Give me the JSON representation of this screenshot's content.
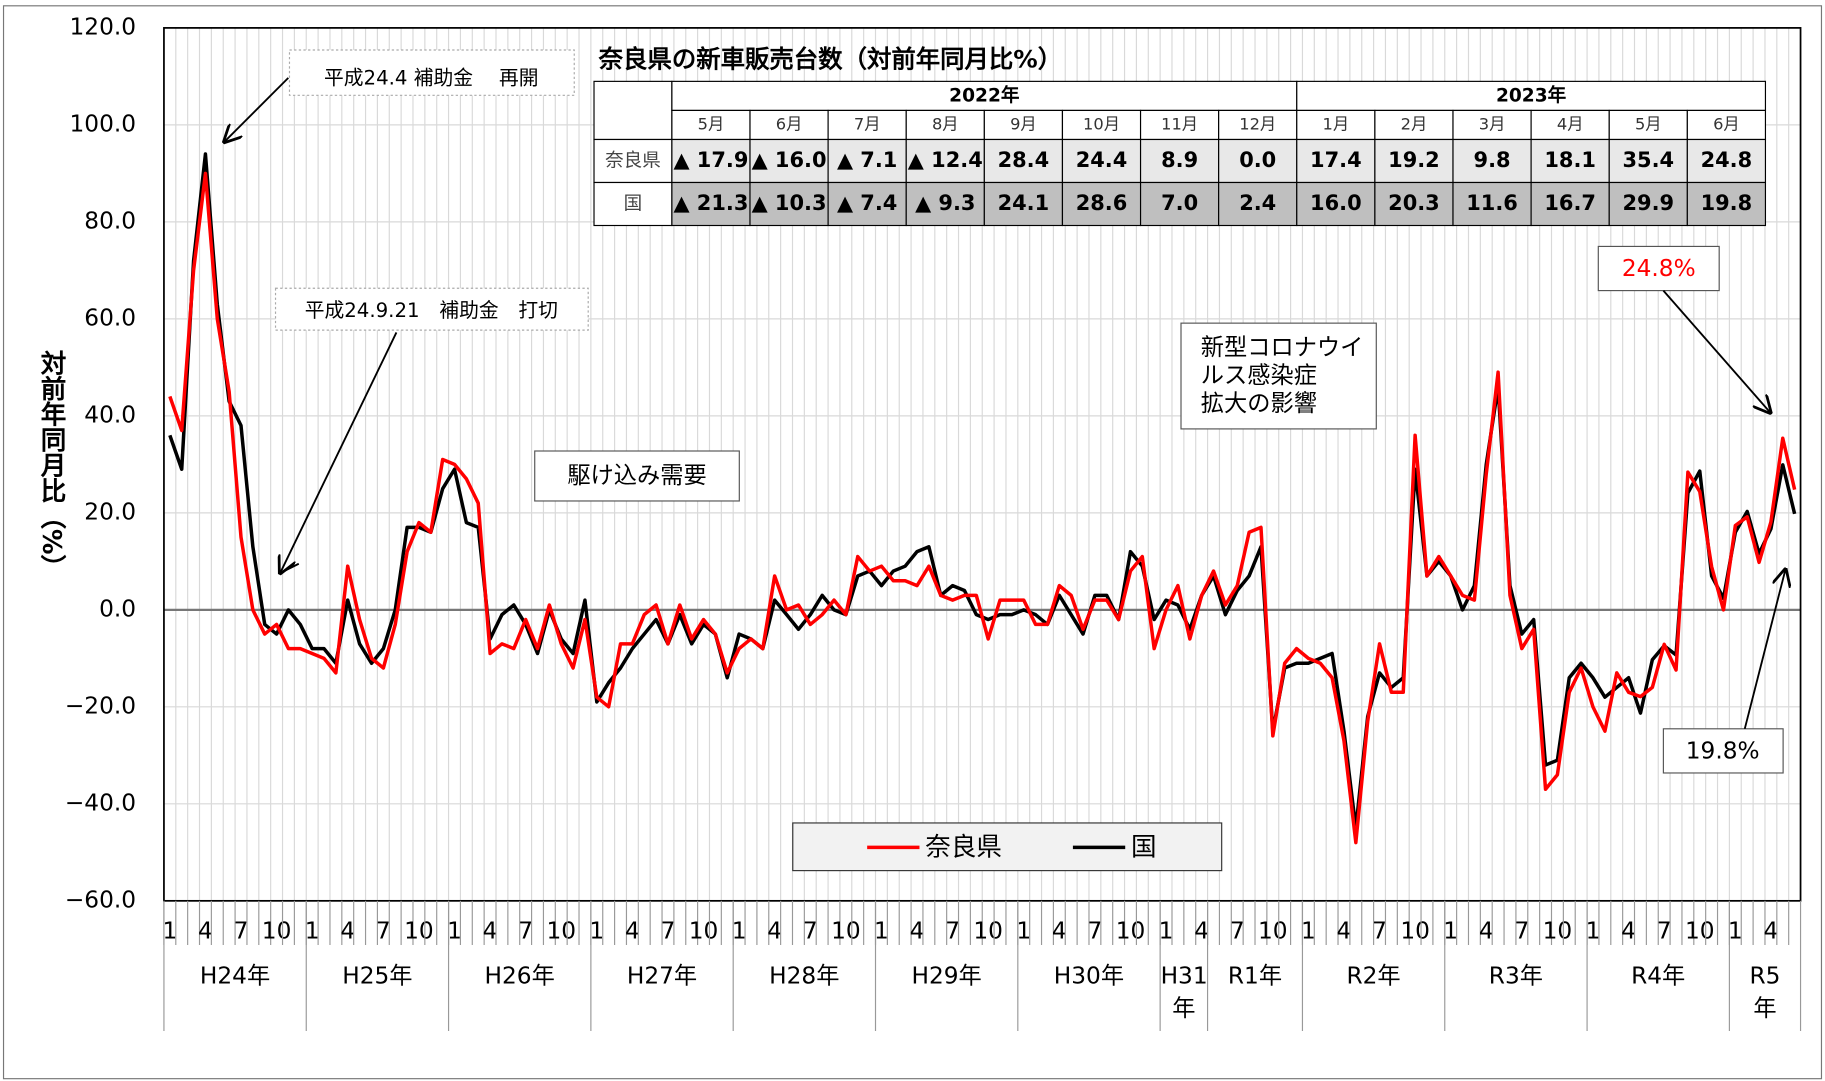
{
  "chart_data": {
    "type": "line",
    "ylabel": "対前年同月比（%）",
    "ylim": [
      -60,
      120
    ],
    "yticks": [
      {
        "value": -60,
        "label": "−60.0"
      },
      {
        "value": -40,
        "label": "−40.0"
      },
      {
        "value": -20,
        "label": "−20.0"
      },
      {
        "value": 0,
        "label": "0.0"
      },
      {
        "value": 20,
        "label": "20.0"
      },
      {
        "value": 40,
        "label": "40.0"
      },
      {
        "value": 60,
        "label": "60.0"
      },
      {
        "value": 80,
        "label": "80.0"
      },
      {
        "value": 100,
        "label": "100.0"
      },
      {
        "value": 120,
        "label": "120.0"
      }
    ],
    "grid": true,
    "legend": "bottom",
    "categories": [
      "1",
      null,
      null,
      "4",
      null,
      null,
      "7",
      null,
      null,
      "10",
      null,
      null,
      "1",
      null,
      null,
      "4",
      null,
      null,
      "7",
      null,
      null,
      "10",
      null,
      null,
      "1",
      null,
      null,
      "4",
      null,
      null,
      "7",
      null,
      null,
      "10",
      null,
      null,
      "1",
      null,
      null,
      "4",
      null,
      null,
      "7",
      null,
      null,
      "10",
      null,
      null,
      "1",
      null,
      null,
      "4",
      null,
      null,
      "7",
      null,
      null,
      "10",
      null,
      null,
      "1",
      null,
      null,
      "4",
      null,
      null,
      "7",
      null,
      null,
      "10",
      null,
      null,
      "1",
      null,
      null,
      "4",
      null,
      null,
      "7",
      null,
      null,
      "10",
      null,
      null,
      "1",
      null,
      null,
      "4",
      null,
      null,
      "7",
      null,
      null,
      "10",
      null,
      null,
      "1",
      null,
      null,
      "4",
      null,
      null,
      "7",
      null,
      null,
      "10",
      null,
      null,
      "1",
      null,
      null,
      "4",
      null,
      null,
      "7",
      null,
      null,
      "10",
      null,
      null,
      "1",
      null,
      null,
      "4",
      null,
      null,
      "7",
      null,
      null,
      "10",
      null,
      null,
      "1",
      null,
      null,
      "4",
      null,
      null
    ],
    "x_groups": [
      {
        "label": "H24年",
        "span": 12
      },
      {
        "label": "H25年",
        "span": 12
      },
      {
        "label": "H26年",
        "span": 12
      },
      {
        "label": "H27年",
        "span": 12
      },
      {
        "label": "H28年",
        "span": 12
      },
      {
        "label": "H29年",
        "span": 12
      },
      {
        "label": "H30年",
        "span": 12
      },
      {
        "label": "H31年",
        "span": 4
      },
      {
        "label": "R1年",
        "span": 8
      },
      {
        "label": "R2年",
        "span": 12
      },
      {
        "label": "R3年",
        "span": 12
      },
      {
        "label": "R4年",
        "span": 12
      },
      {
        "label": "R5年",
        "span": 6
      }
    ],
    "series": [
      {
        "name": "奈良県",
        "color": "#ff0000",
        "values": [
          44,
          37,
          70,
          90,
          60,
          45,
          15,
          0,
          -5,
          -3,
          -8,
          -8,
          -9,
          -10,
          -13,
          9,
          -2,
          -10,
          -12,
          -3,
          12,
          18,
          16,
          31,
          30,
          27,
          22,
          -9,
          -7,
          -8,
          -2,
          -8,
          1,
          -7,
          -12,
          -2,
          -18,
          -20,
          -7,
          -7,
          -1,
          1,
          -7,
          1,
          -6,
          -2,
          -5,
          -13,
          -8,
          -6,
          -8,
          7,
          0,
          1,
          -3,
          -1,
          2,
          -1,
          11,
          8,
          9,
          6,
          6,
          5,
          9,
          3,
          2,
          3,
          3,
          -6,
          2,
          2,
          2,
          -3,
          -3,
          5,
          3,
          -4,
          2,
          2,
          -2,
          8,
          11,
          -8,
          0,
          5,
          -6,
          3,
          8,
          1,
          5,
          16,
          17,
          -26,
          -11,
          -8,
          -10,
          -11,
          -14,
          -27,
          -48,
          -23,
          -7,
          -17,
          -17,
          36,
          7,
          11,
          7,
          3,
          2,
          28,
          49,
          3,
          -8,
          -4,
          -37,
          -34,
          -17,
          -12,
          -20,
          -25,
          -13,
          -17,
          -17.9,
          -16.0,
          -7.1,
          -12.4,
          28.4,
          24.4,
          8.9,
          0.0,
          17.4,
          19.2,
          9.8,
          18.1,
          35.4,
          24.8
        ]
      },
      {
        "name": "国",
        "color": "#000000",
        "values": [
          36,
          29,
          72,
          94,
          63,
          43,
          38,
          13,
          -3,
          -5,
          0,
          -3,
          -8,
          -8,
          -11,
          2,
          -7,
          -11,
          -8,
          0,
          17,
          17,
          16,
          25,
          29,
          18,
          17,
          -6,
          -1,
          1,
          -3,
          -9,
          0,
          -6,
          -9,
          2,
          -19,
          -15,
          -12,
          -8,
          -5,
          -2,
          -7,
          -1,
          -7,
          -3,
          -5,
          -14,
          -5,
          -6,
          -8,
          2,
          -1,
          -4,
          -1,
          3,
          0,
          -1,
          7,
          8,
          5,
          8,
          9,
          12,
          13,
          3,
          5,
          4,
          -1,
          -2,
          -1,
          -1,
          0,
          -1,
          -3,
          3,
          -1,
          -5,
          3,
          3,
          -2,
          12,
          9,
          -2,
          2,
          1,
          -4,
          3,
          7,
          -1,
          4,
          7,
          13,
          -25,
          -12,
          -11,
          -11,
          -10,
          -9,
          -25,
          -45,
          -22,
          -13,
          -16,
          -14,
          29,
          7,
          10,
          7,
          0,
          5,
          30,
          46,
          5,
          -5,
          -2,
          -32,
          -31,
          -14,
          -11,
          -14,
          -18,
          -16,
          -14,
          -21.3,
          -10.3,
          -7.4,
          -9.3,
          24.1,
          28.6,
          7.0,
          2.4,
          16.0,
          20.3,
          11.6,
          16.7,
          29.9,
          19.8
        ]
      }
    ],
    "annotations": [
      {
        "text": "平成24.4 補助金　 再開"
      },
      {
        "text": "平成24.9.21　補助金　打切"
      },
      {
        "text": "駆け込み需要"
      },
      {
        "lines": [
          "新型コロナウイ",
          "ルス感染症",
          "拡大の影響"
        ]
      },
      {
        "text": "24.8%",
        "color": "#ff0000"
      },
      {
        "text": "19.8%"
      }
    ],
    "table": {
      "title": "奈良県の新車販売台数（対前年同月比%）",
      "years": [
        {
          "label": "2022年",
          "span": 8
        },
        {
          "label": "2023年",
          "span": 6
        }
      ],
      "months": [
        "5月",
        "6月",
        "7月",
        "8月",
        "9月",
        "10月",
        "11月",
        "12月",
        "1月",
        "2月",
        "3月",
        "4月",
        "5月",
        "6月"
      ],
      "rows": [
        {
          "label": "奈良県",
          "cells": [
            "▲ 17.9",
            "▲ 16.0",
            "▲ 7.1",
            "▲ 12.4",
            "28.4",
            "24.4",
            "8.9",
            "0.0",
            "17.4",
            "19.2",
            "9.8",
            "18.1",
            "35.4",
            "24.8"
          ]
        },
        {
          "label": "国",
          "cells": [
            "▲ 21.3",
            "▲ 10.3",
            "▲ 7.4",
            "▲ 9.3",
            "24.1",
            "28.6",
            "7.0",
            "2.4",
            "16.0",
            "20.3",
            "11.6",
            "16.7",
            "29.9",
            "19.8"
          ]
        }
      ]
    }
  }
}
